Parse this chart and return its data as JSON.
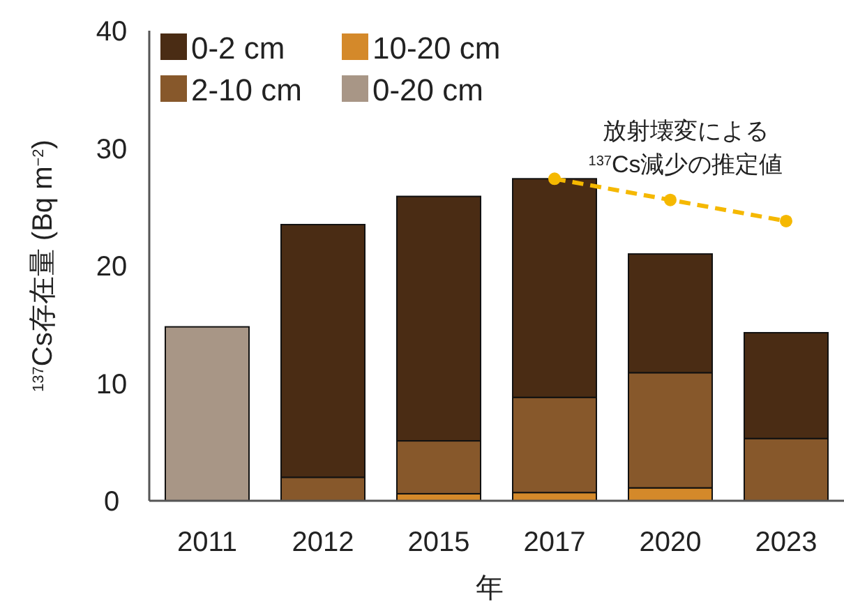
{
  "chart_data": {
    "type": "bar",
    "stacked": true,
    "ylabel": "$^{137}$Cs存在量 (Bq m$^{−2}$)",
    "xlabel": "年",
    "categories": [
      "2011",
      "2012",
      "2015",
      "2017",
      "2020",
      "2023"
    ],
    "series": [
      {
        "name": "10-20 cm",
        "color": "#d4892a",
        "values": [
          null,
          0,
          0.6,
          0.7,
          1.1,
          null
        ]
      },
      {
        "name": "2-10 cm",
        "color": "#87582b",
        "values": [
          null,
          2.0,
          4.5,
          8.1,
          9.8,
          5.3
        ]
      },
      {
        "name": "0-2 cm",
        "color": "#4a2c14",
        "values": [
          null,
          21.5,
          20.8,
          18.6,
          10.1,
          9.0
        ]
      },
      {
        "name": "0-20 cm",
        "color": "#a89686",
        "values": [
          14.8,
          null,
          null,
          null,
          null,
          null
        ]
      },
      {
        "type": "line",
        "color": "#f5b800",
        "values": [
          null,
          null,
          null,
          27.4,
          25.6,
          23.8
        ],
        "marker": "circle",
        "line_style": "dashed"
      }
    ],
    "ylim": [
      0,
      40
    ],
    "yticks": [
      0,
      10,
      20,
      30,
      40
    ],
    "grid": false,
    "legend": "top left",
    "annotations": [
      {
        "text": "放射壊変による\n$^{137}$Cs減少の推定値",
        "x": "2020",
        "y": 25.6
      }
    ]
  }
}
